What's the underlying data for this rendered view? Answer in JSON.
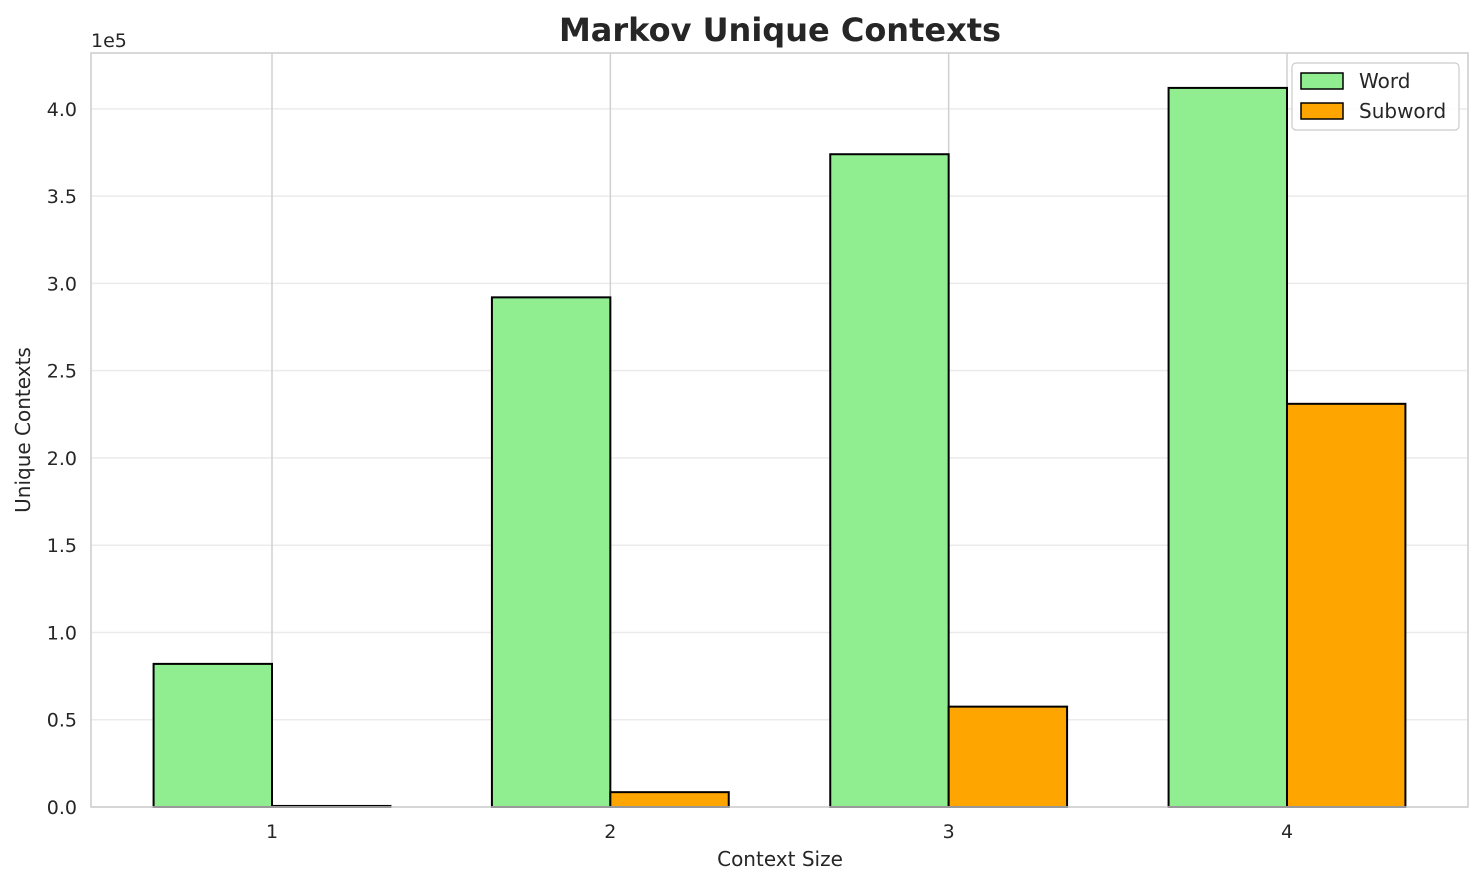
{
  "chart_data": {
    "type": "bar",
    "title": "Markov Unique Contexts",
    "xlabel": "Context Size",
    "ylabel": "Unique Contexts",
    "y_offset_label": "1e5",
    "y_scale_factor": 100000,
    "categories": [
      "1",
      "2",
      "3",
      "4"
    ],
    "series": [
      {
        "name": "Word",
        "values": [
          82000,
          292000,
          374000,
          412000
        ],
        "color": "#90ee90"
      },
      {
        "name": "Subword",
        "values": [
          600,
          8500,
          57500,
          231000
        ],
        "color": "#ffa500"
      }
    ],
    "ylim": [
      0,
      432000
    ],
    "yticks": [
      0,
      50000,
      100000,
      150000,
      200000,
      250000,
      300000,
      350000,
      400000
    ],
    "ytick_labels": [
      "0.0",
      "0.5",
      "1.0",
      "1.5",
      "2.0",
      "2.5",
      "3.0",
      "3.5",
      "4.0"
    ],
    "grid": true,
    "legend_position": "top-right",
    "edge_color": "#000000"
  }
}
